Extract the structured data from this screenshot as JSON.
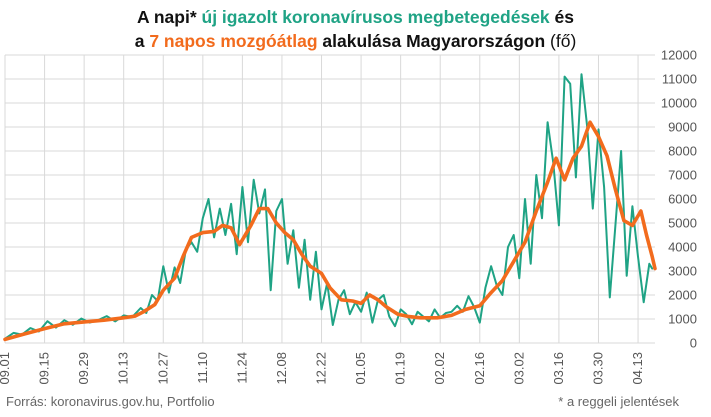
{
  "title": {
    "line1_part1": "A napi* ",
    "line1_highlight": "új igazolt koronavírusos megbetegedések",
    "line1_part2": " és",
    "line2_part1": "a ",
    "line2_highlight": "7 napos mozgóátlag",
    "line2_part2": " alakulása Magyarországon ",
    "line2_unit": "(fő)"
  },
  "footer": {
    "source": "Forrás: koronavirus.gov.hu, Portfolio",
    "note": "* a reggeli jelentések"
  },
  "colors": {
    "daily": "#1fa385",
    "average": "#f26b1d",
    "grid": "#d9d9d9",
    "text": "#111111"
  },
  "chart_data": {
    "type": "line",
    "title": "A napi* új igazolt koronavírusos megbetegedések és a 7 napos mozgóátlag alakulása Magyarországon (fő)",
    "xlabel": "",
    "ylabel": "",
    "ylim": [
      0,
      12000
    ],
    "yticks": [
      0,
      1000,
      2000,
      3000,
      4000,
      5000,
      6000,
      7000,
      8000,
      9000,
      10000,
      11000,
      12000
    ],
    "xticks": [
      "09.01",
      "09.15",
      "09.29",
      "10.13",
      "10.27",
      "11.10",
      "11.24",
      "12.08",
      "12.22",
      "01.05",
      "01.19",
      "02.02",
      "02.16",
      "03.02",
      "03.16",
      "03.30",
      "04.13"
    ],
    "x_start": "2020-09-01",
    "grid": true,
    "legend": "none",
    "series": [
      {
        "name": "új igazolt koronavírusos megbetegedések",
        "color": "#1fa385",
        "points": [
          [
            "2020-09-01",
            180
          ],
          [
            "2020-09-04",
            420
          ],
          [
            "2020-09-07",
            350
          ],
          [
            "2020-09-10",
            620
          ],
          [
            "2020-09-13",
            480
          ],
          [
            "2020-09-16",
            910
          ],
          [
            "2020-09-19",
            640
          ],
          [
            "2020-09-22",
            950
          ],
          [
            "2020-09-25",
            760
          ],
          [
            "2020-09-28",
            1020
          ],
          [
            "2020-10-01",
            850
          ],
          [
            "2020-10-04",
            960
          ],
          [
            "2020-10-07",
            1120
          ],
          [
            "2020-10-10",
            900
          ],
          [
            "2020-10-13",
            1150
          ],
          [
            "2020-10-16",
            1080
          ],
          [
            "2020-10-19",
            1460
          ],
          [
            "2020-10-21",
            1250
          ],
          [
            "2020-10-23",
            2000
          ],
          [
            "2020-10-25",
            1750
          ],
          [
            "2020-10-27",
            3200
          ],
          [
            "2020-10-29",
            2100
          ],
          [
            "2020-10-31",
            3150
          ],
          [
            "2020-11-02",
            2500
          ],
          [
            "2020-11-04",
            3900
          ],
          [
            "2020-11-06",
            4200
          ],
          [
            "2020-11-08",
            3800
          ],
          [
            "2020-11-10",
            5200
          ],
          [
            "2020-11-12",
            6000
          ],
          [
            "2020-11-14",
            4400
          ],
          [
            "2020-11-16",
            5600
          ],
          [
            "2020-11-18",
            4500
          ],
          [
            "2020-11-20",
            5800
          ],
          [
            "2020-11-22",
            3700
          ],
          [
            "2020-11-24",
            6500
          ],
          [
            "2020-11-26",
            4200
          ],
          [
            "2020-11-28",
            6800
          ],
          [
            "2020-11-30",
            5400
          ],
          [
            "2020-12-02",
            6400
          ],
          [
            "2020-12-04",
            2200
          ],
          [
            "2020-12-06",
            5500
          ],
          [
            "2020-12-08",
            6000
          ],
          [
            "2020-12-10",
            3300
          ],
          [
            "2020-12-12",
            4700
          ],
          [
            "2020-12-14",
            2300
          ],
          [
            "2020-12-16",
            4300
          ],
          [
            "2020-12-18",
            1800
          ],
          [
            "2020-12-20",
            3800
          ],
          [
            "2020-12-22",
            1400
          ],
          [
            "2020-12-24",
            2500
          ],
          [
            "2020-12-26",
            750
          ],
          [
            "2020-12-28",
            1800
          ],
          [
            "2020-12-30",
            2200
          ],
          [
            "2021-01-01",
            1200
          ],
          [
            "2021-01-03",
            1700
          ],
          [
            "2021-01-05",
            1300
          ],
          [
            "2021-01-07",
            2100
          ],
          [
            "2021-01-09",
            850
          ],
          [
            "2021-01-11",
            1800
          ],
          [
            "2021-01-13",
            2000
          ],
          [
            "2021-01-15",
            1100
          ],
          [
            "2021-01-17",
            700
          ],
          [
            "2021-01-19",
            1400
          ],
          [
            "2021-01-21",
            1200
          ],
          [
            "2021-01-23",
            780
          ],
          [
            "2021-01-25",
            1300
          ],
          [
            "2021-01-27",
            1100
          ],
          [
            "2021-01-29",
            900
          ],
          [
            "2021-01-31",
            1400
          ],
          [
            "2021-02-02",
            1050
          ],
          [
            "2021-02-04",
            1250
          ],
          [
            "2021-02-06",
            1300
          ],
          [
            "2021-02-08",
            1550
          ],
          [
            "2021-02-10",
            1300
          ],
          [
            "2021-02-12",
            1950
          ],
          [
            "2021-02-14",
            1500
          ],
          [
            "2021-02-16",
            850
          ],
          [
            "2021-02-18",
            2300
          ],
          [
            "2021-02-20",
            3200
          ],
          [
            "2021-02-22",
            2400
          ],
          [
            "2021-02-24",
            2000
          ],
          [
            "2021-02-26",
            4000
          ],
          [
            "2021-02-28",
            4500
          ],
          [
            "2021-03-02",
            2700
          ],
          [
            "2021-03-04",
            6000
          ],
          [
            "2021-03-06",
            3300
          ],
          [
            "2021-03-08",
            7000
          ],
          [
            "2021-03-10",
            5200
          ],
          [
            "2021-03-12",
            9200
          ],
          [
            "2021-03-14",
            7500
          ],
          [
            "2021-03-16",
            4900
          ],
          [
            "2021-03-18",
            11100
          ],
          [
            "2021-03-20",
            10800
          ],
          [
            "2021-03-22",
            6900
          ],
          [
            "2021-03-24",
            11200
          ],
          [
            "2021-03-26",
            9000
          ],
          [
            "2021-03-28",
            5600
          ],
          [
            "2021-03-30",
            8900
          ],
          [
            "2021-04-01",
            6500
          ],
          [
            "2021-04-03",
            1900
          ],
          [
            "2021-04-05",
            4900
          ],
          [
            "2021-04-07",
            8000
          ],
          [
            "2021-04-09",
            2800
          ],
          [
            "2021-04-11",
            5700
          ],
          [
            "2021-04-13",
            3600
          ],
          [
            "2021-04-15",
            1700
          ],
          [
            "2021-04-17",
            3300
          ],
          [
            "2021-04-18",
            3100
          ]
        ]
      },
      {
        "name": "7 napos mozgóátlag",
        "color": "#f26b1d",
        "points": [
          [
            "2020-09-01",
            150
          ],
          [
            "2020-09-08",
            380
          ],
          [
            "2020-09-15",
            600
          ],
          [
            "2020-09-22",
            800
          ],
          [
            "2020-09-29",
            880
          ],
          [
            "2020-10-06",
            950
          ],
          [
            "2020-10-13",
            1050
          ],
          [
            "2020-10-17",
            1120
          ],
          [
            "2020-10-20",
            1300
          ],
          [
            "2020-10-24",
            1600
          ],
          [
            "2020-10-27",
            2200
          ],
          [
            "2020-10-31",
            2700
          ],
          [
            "2020-11-03",
            3600
          ],
          [
            "2020-11-06",
            4400
          ],
          [
            "2020-11-10",
            4600
          ],
          [
            "2020-11-14",
            4650
          ],
          [
            "2020-11-17",
            4900
          ],
          [
            "2020-11-20",
            4800
          ],
          [
            "2020-11-23",
            4100
          ],
          [
            "2020-11-27",
            4900
          ],
          [
            "2020-11-30",
            5600
          ],
          [
            "2020-12-03",
            5600
          ],
          [
            "2020-12-06",
            5000
          ],
          [
            "2020-12-09",
            4600
          ],
          [
            "2020-12-12",
            4300
          ],
          [
            "2020-12-15",
            3700
          ],
          [
            "2020-12-18",
            3200
          ],
          [
            "2020-12-22",
            2900
          ],
          [
            "2020-12-25",
            2300
          ],
          [
            "2020-12-29",
            1800
          ],
          [
            "2021-01-02",
            1750
          ],
          [
            "2021-01-05",
            1650
          ],
          [
            "2021-01-08",
            2000
          ],
          [
            "2021-01-11",
            1800
          ],
          [
            "2021-01-14",
            1500
          ],
          [
            "2021-01-18",
            1200
          ],
          [
            "2021-01-22",
            1100
          ],
          [
            "2021-01-26",
            1050
          ],
          [
            "2021-02-01",
            1050
          ],
          [
            "2021-02-06",
            1150
          ],
          [
            "2021-02-11",
            1400
          ],
          [
            "2021-02-16",
            1550
          ],
          [
            "2021-02-20",
            2100
          ],
          [
            "2021-02-24",
            2600
          ],
          [
            "2021-02-28",
            3400
          ],
          [
            "2021-03-04",
            4200
          ],
          [
            "2021-03-08",
            5500
          ],
          [
            "2021-03-12",
            6700
          ],
          [
            "2021-03-15",
            7700
          ],
          [
            "2021-03-18",
            6800
          ],
          [
            "2021-03-21",
            7700
          ],
          [
            "2021-03-24",
            8200
          ],
          [
            "2021-03-27",
            9200
          ],
          [
            "2021-03-30",
            8600
          ],
          [
            "2021-04-02",
            7800
          ],
          [
            "2021-04-05",
            6400
          ],
          [
            "2021-04-08",
            5100
          ],
          [
            "2021-04-11",
            4900
          ],
          [
            "2021-04-14",
            5500
          ],
          [
            "2021-04-16",
            4500
          ],
          [
            "2021-04-18",
            3600
          ],
          [
            "2021-04-19",
            3100
          ]
        ]
      }
    ]
  }
}
